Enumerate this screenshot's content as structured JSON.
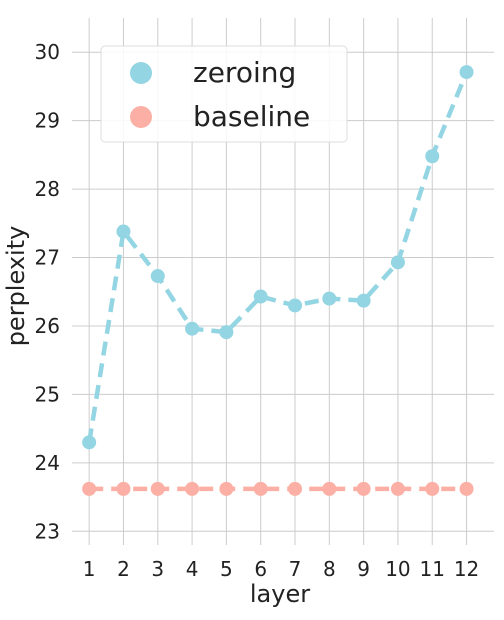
{
  "chart_data": {
    "type": "line",
    "title": "",
    "xlabel": "layer",
    "ylabel": "perplexity",
    "x": [
      1,
      2,
      3,
      4,
      5,
      6,
      7,
      8,
      9,
      10,
      11,
      12
    ],
    "xlim": [
      0.5,
      12.8
    ],
    "ylim": [
      22.8,
      30.5
    ],
    "yticks": [
      23,
      24,
      25,
      26,
      27,
      28,
      29,
      30
    ],
    "grid": true,
    "legend_position": "top-left",
    "series": [
      {
        "name": "zeroing",
        "color": "#93d5e3",
        "values": [
          24.3,
          27.38,
          26.73,
          25.96,
          25.91,
          26.43,
          26.3,
          26.4,
          26.37,
          26.93,
          28.48,
          29.71
        ]
      },
      {
        "name": "baseline",
        "color": "#fcb0a5",
        "values": [
          23.62,
          23.62,
          23.62,
          23.62,
          23.62,
          23.62,
          23.62,
          23.62,
          23.62,
          23.62,
          23.62,
          23.62
        ]
      }
    ]
  }
}
